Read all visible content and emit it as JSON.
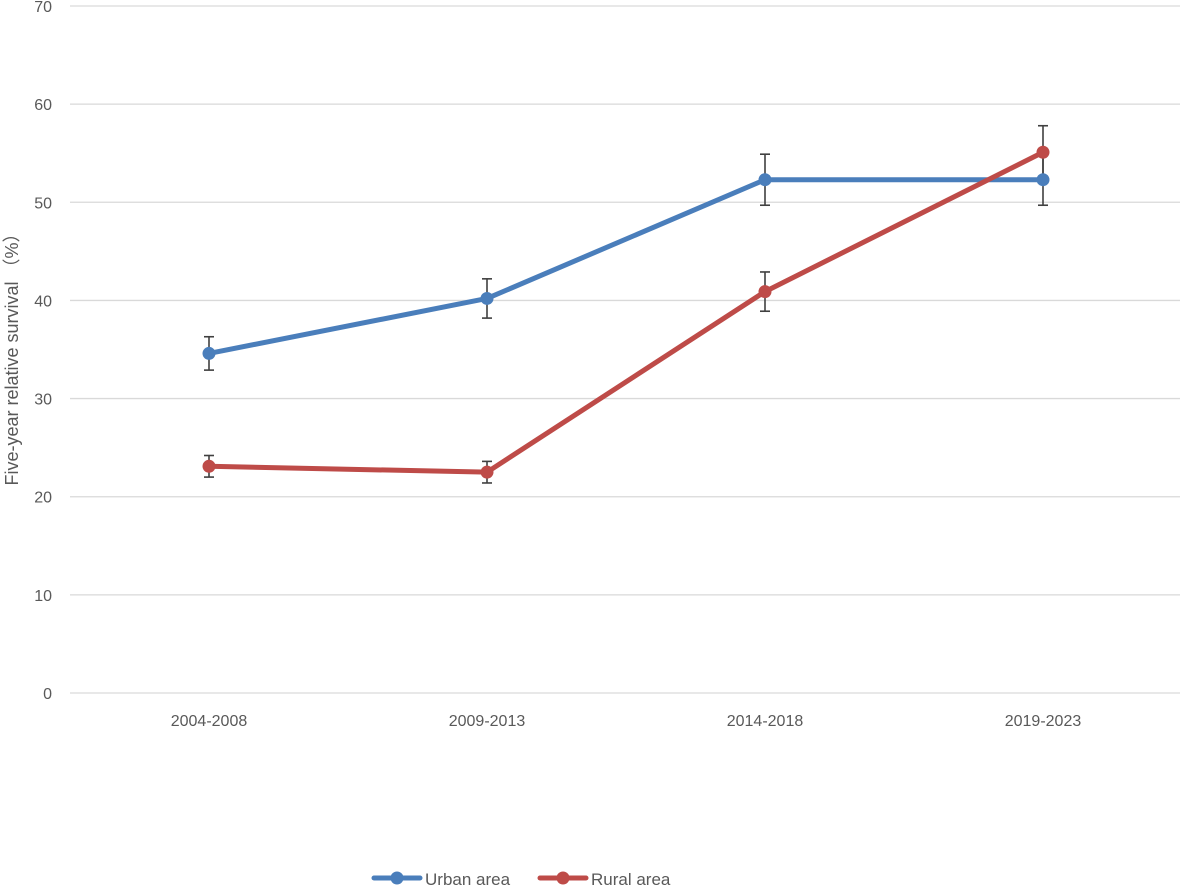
{
  "colors": {
    "urban": "#4a7ebb",
    "rural": "#be4b48",
    "grid": "#d9d9d9",
    "error_bar": "#404040",
    "text": "#595959"
  },
  "chart_data": {
    "type": "line",
    "title": "",
    "xlabel": "",
    "ylabel": "Five-year relative survival （%）",
    "ylim": [
      0,
      70
    ],
    "yticks": [
      0,
      10,
      20,
      30,
      40,
      50,
      60,
      70
    ],
    "grid": "horizontal",
    "legend_position": "bottom",
    "categories": [
      "2004-2008",
      "2009-2013",
      "2014-2018",
      "2019-2023"
    ],
    "series": [
      {
        "name": "Urban area",
        "color": "#4a7ebb",
        "values": [
          34.6,
          40.2,
          52.3,
          52.3
        ],
        "error_low": [
          32.9,
          38.2,
          49.7,
          49.7
        ],
        "error_high": [
          36.3,
          42.2,
          54.9,
          54.9
        ]
      },
      {
        "name": "Rural area",
        "color": "#be4b48",
        "values": [
          23.1,
          22.5,
          40.9,
          55.1
        ],
        "error_low": [
          22.0,
          21.4,
          38.9,
          52.4
        ],
        "error_high": [
          24.2,
          23.6,
          42.9,
          57.8
        ]
      }
    ]
  }
}
